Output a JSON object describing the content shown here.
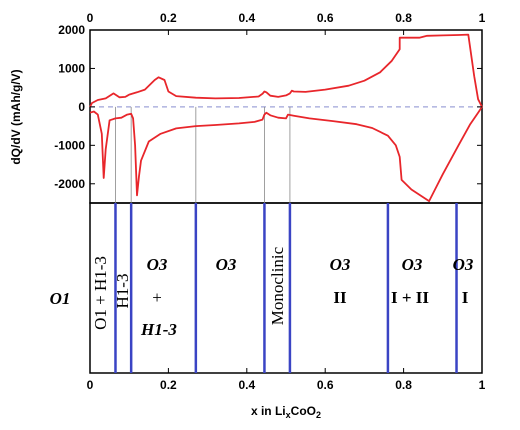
{
  "chart_data": {
    "type": "line",
    "x_range": [
      0,
      1
    ],
    "y_range": [
      -2500,
      2000
    ],
    "x_ticks": [
      "0",
      "0.2",
      "0.4",
      "0.6",
      "0.8",
      "1"
    ],
    "x_tick_values": [
      0,
      0.2,
      0.4,
      0.6,
      0.8,
      1
    ],
    "y_ticks": [
      "2000",
      "1000",
      "0",
      "-1000",
      "-2000"
    ],
    "y_tick_values": [
      2000,
      1000,
      0,
      -1000,
      -2000
    ],
    "ylabel": "dQ/dV (mAh/g/V)",
    "xlabel_prefix": "x in  Li",
    "xlabel_sub": "x",
    "xlabel_mid": "CoO",
    "xlabel_sub2": "2",
    "line_color": "#e8262b",
    "boundary_color": "#3a44c4",
    "zero_line_color": "#9fa4d9",
    "series": [
      {
        "values": [
          [
            0.0,
            -150
          ],
          [
            0.01,
            -120
          ],
          [
            0.02,
            -200
          ],
          [
            0.03,
            -700
          ],
          [
            0.035,
            -1850
          ],
          [
            0.04,
            -1100
          ],
          [
            0.05,
            -350
          ],
          [
            0.065,
            -300
          ],
          [
            0.08,
            -280
          ],
          [
            0.095,
            -200
          ],
          [
            0.105,
            -180
          ],
          [
            0.11,
            -300
          ],
          [
            0.115,
            -1000
          ],
          [
            0.12,
            -2300
          ],
          [
            0.125,
            -1800
          ],
          [
            0.13,
            -1400
          ],
          [
            0.15,
            -900
          ],
          [
            0.18,
            -700
          ],
          [
            0.22,
            -560
          ],
          [
            0.27,
            -500
          ],
          [
            0.32,
            -470
          ],
          [
            0.38,
            -430
          ],
          [
            0.42,
            -390
          ],
          [
            0.44,
            -330
          ],
          [
            0.445,
            -200
          ],
          [
            0.45,
            -150
          ],
          [
            0.46,
            -220
          ],
          [
            0.48,
            -280
          ],
          [
            0.5,
            -300
          ],
          [
            0.505,
            -200
          ],
          [
            0.52,
            -230
          ],
          [
            0.56,
            -300
          ],
          [
            0.62,
            -370
          ],
          [
            0.68,
            -450
          ],
          [
            0.72,
            -550
          ],
          [
            0.76,
            -750
          ],
          [
            0.78,
            -1000
          ],
          [
            0.79,
            -1300
          ],
          [
            0.795,
            -1900
          ],
          [
            0.82,
            -2150
          ],
          [
            0.85,
            -2350
          ],
          [
            0.865,
            -2450
          ],
          [
            0.88,
            -2150
          ],
          [
            0.9,
            -1750
          ],
          [
            0.94,
            -1000
          ],
          [
            0.97,
            -450
          ],
          [
            0.99,
            -150
          ],
          [
            1.0,
            0
          ]
        ]
      },
      {
        "values": [
          [
            0.0,
            0
          ],
          [
            0.005,
            100
          ],
          [
            0.02,
            180
          ],
          [
            0.04,
            220
          ],
          [
            0.06,
            350
          ],
          [
            0.075,
            250
          ],
          [
            0.09,
            260
          ],
          [
            0.1,
            320
          ],
          [
            0.12,
            380
          ],
          [
            0.14,
            450
          ],
          [
            0.165,
            700
          ],
          [
            0.175,
            770
          ],
          [
            0.19,
            700
          ],
          [
            0.2,
            400
          ],
          [
            0.22,
            280
          ],
          [
            0.27,
            240
          ],
          [
            0.32,
            220
          ],
          [
            0.38,
            230
          ],
          [
            0.43,
            270
          ],
          [
            0.44,
            340
          ],
          [
            0.445,
            400
          ],
          [
            0.45,
            380
          ],
          [
            0.46,
            290
          ],
          [
            0.48,
            260
          ],
          [
            0.5,
            300
          ],
          [
            0.51,
            350
          ],
          [
            0.515,
            420
          ],
          [
            0.52,
            400
          ],
          [
            0.55,
            390
          ],
          [
            0.6,
            450
          ],
          [
            0.66,
            550
          ],
          [
            0.7,
            680
          ],
          [
            0.74,
            900
          ],
          [
            0.77,
            1200
          ],
          [
            0.79,
            1500
          ],
          [
            0.79,
            1800
          ],
          [
            0.8,
            1800
          ],
          [
            0.81,
            1800
          ],
          [
            0.83,
            1800
          ],
          [
            0.84,
            1800
          ],
          [
            0.86,
            1850
          ],
          [
            0.9,
            1860
          ],
          [
            0.94,
            1870
          ],
          [
            0.965,
            1880
          ],
          [
            0.98,
            800
          ],
          [
            0.99,
            200
          ],
          [
            1.0,
            0
          ]
        ]
      }
    ],
    "connector_x": [
      0.065,
      0.105,
      0.27,
      0.445,
      0.51
    ],
    "phase_boundaries": [
      0.065,
      0.105,
      0.27,
      0.445,
      0.51,
      0.76,
      0.935
    ],
    "phases": [
      {
        "label": "O1",
        "x": 0.0
      },
      {
        "label": "O1 + H1-3",
        "x": 0.03
      },
      {
        "label": "H1-3",
        "x": 0.085
      },
      {
        "lines": [
          "O3",
          "+",
          "H1-3"
        ],
        "x": 0.19
      },
      {
        "label": "O3",
        "x": 0.355
      },
      {
        "label": "Monoclinic",
        "x": 0.48
      },
      {
        "lines": [
          "O3",
          "II"
        ],
        "x": 0.635
      },
      {
        "lines": [
          "O3",
          "I + II"
        ],
        "x": 0.85
      },
      {
        "lines": [
          "O3",
          "I"
        ],
        "x": 0.965
      }
    ]
  }
}
